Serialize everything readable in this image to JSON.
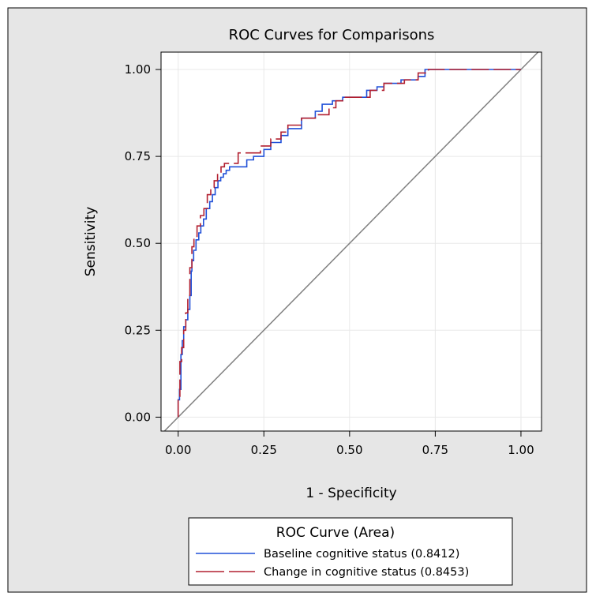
{
  "chart_data": {
    "type": "line",
    "title": "ROC Curves for Comparisons",
    "xlabel": "1 - Specificity",
    "ylabel": "Sensitivity",
    "xlim": [
      -0.05,
      1.06
    ],
    "ylim": [
      -0.04,
      1.05
    ],
    "x_ticks": [
      "0.00",
      "0.25",
      "0.50",
      "0.75",
      "1.00"
    ],
    "y_ticks": [
      "0.00",
      "0.25",
      "0.50",
      "0.75",
      "1.00"
    ],
    "grid": true,
    "legend": {
      "title": "ROC Curve (Area)",
      "position": "bottom"
    },
    "reference_line": {
      "x": [
        0,
        1
      ],
      "y": [
        0,
        1
      ],
      "color": "#808080"
    },
    "series": [
      {
        "name": "Baseline cognitive status  (0.8412)",
        "color": "#2050d8",
        "dash": "solid",
        "x": [
          0.0,
          0.0,
          0.004,
          0.004,
          0.008,
          0.008,
          0.012,
          0.012,
          0.016,
          0.016,
          0.022,
          0.022,
          0.028,
          0.028,
          0.034,
          0.034,
          0.038,
          0.038,
          0.04,
          0.04,
          0.045,
          0.045,
          0.052,
          0.052,
          0.06,
          0.06,
          0.066,
          0.066,
          0.074,
          0.074,
          0.082,
          0.082,
          0.092,
          0.092,
          0.1,
          0.1,
          0.108,
          0.108,
          0.116,
          0.116,
          0.124,
          0.124,
          0.132,
          0.132,
          0.14,
          0.14,
          0.15,
          0.15,
          0.2,
          0.2,
          0.22,
          0.22,
          0.25,
          0.25,
          0.27,
          0.27,
          0.3,
          0.3,
          0.32,
          0.32,
          0.36,
          0.36,
          0.4,
          0.4,
          0.42,
          0.42,
          0.45,
          0.45,
          0.48,
          0.48,
          0.55,
          0.55,
          0.58,
          0.58,
          0.6,
          0.6,
          0.65,
          0.65,
          0.7,
          0.7,
          0.72,
          0.72,
          0.75,
          1.0
        ],
        "y": [
          0.0,
          0.05,
          0.05,
          0.08,
          0.08,
          0.18,
          0.18,
          0.22,
          0.22,
          0.26,
          0.26,
          0.28,
          0.28,
          0.31,
          0.31,
          0.35,
          0.35,
          0.42,
          0.42,
          0.45,
          0.45,
          0.48,
          0.48,
          0.51,
          0.51,
          0.53,
          0.53,
          0.55,
          0.55,
          0.57,
          0.57,
          0.6,
          0.6,
          0.62,
          0.62,
          0.64,
          0.64,
          0.66,
          0.66,
          0.68,
          0.68,
          0.69,
          0.69,
          0.7,
          0.7,
          0.71,
          0.71,
          0.72,
          0.72,
          0.74,
          0.74,
          0.75,
          0.75,
          0.77,
          0.77,
          0.79,
          0.79,
          0.81,
          0.81,
          0.83,
          0.83,
          0.86,
          0.86,
          0.88,
          0.88,
          0.9,
          0.9,
          0.91,
          0.91,
          0.92,
          0.92,
          0.94,
          0.94,
          0.95,
          0.95,
          0.96,
          0.96,
          0.97,
          0.97,
          0.98,
          0.98,
          1.0,
          1.0,
          1.0
        ]
      },
      {
        "name": "Change in cognitive status  (0.8453)",
        "color": "#b22030",
        "dash": "long-dash",
        "x": [
          0.0,
          0.0,
          0.005,
          0.005,
          0.01,
          0.01,
          0.016,
          0.016,
          0.022,
          0.022,
          0.028,
          0.028,
          0.034,
          0.034,
          0.04,
          0.04,
          0.046,
          0.046,
          0.055,
          0.055,
          0.065,
          0.065,
          0.075,
          0.075,
          0.085,
          0.085,
          0.095,
          0.095,
          0.105,
          0.105,
          0.115,
          0.115,
          0.125,
          0.125,
          0.135,
          0.135,
          0.175,
          0.175,
          0.24,
          0.24,
          0.27,
          0.27,
          0.3,
          0.3,
          0.32,
          0.32,
          0.36,
          0.36,
          0.4,
          0.4,
          0.44,
          0.44,
          0.46,
          0.46,
          0.48,
          0.48,
          0.56,
          0.56,
          0.6,
          0.6,
          0.66,
          0.66,
          0.7,
          0.7,
          0.73,
          0.73,
          0.76,
          1.0
        ],
        "y": [
          0.0,
          0.06,
          0.06,
          0.16,
          0.16,
          0.2,
          0.2,
          0.25,
          0.25,
          0.3,
          0.3,
          0.35,
          0.35,
          0.43,
          0.43,
          0.49,
          0.49,
          0.52,
          0.52,
          0.55,
          0.55,
          0.58,
          0.58,
          0.6,
          0.6,
          0.64,
          0.64,
          0.66,
          0.66,
          0.68,
          0.68,
          0.7,
          0.7,
          0.72,
          0.72,
          0.73,
          0.73,
          0.76,
          0.76,
          0.78,
          0.78,
          0.8,
          0.8,
          0.82,
          0.82,
          0.84,
          0.84,
          0.86,
          0.86,
          0.87,
          0.87,
          0.89,
          0.89,
          0.91,
          0.91,
          0.92,
          0.92,
          0.94,
          0.94,
          0.96,
          0.96,
          0.97,
          0.97,
          0.99,
          0.99,
          1.0,
          1.0,
          1.0
        ]
      }
    ]
  }
}
